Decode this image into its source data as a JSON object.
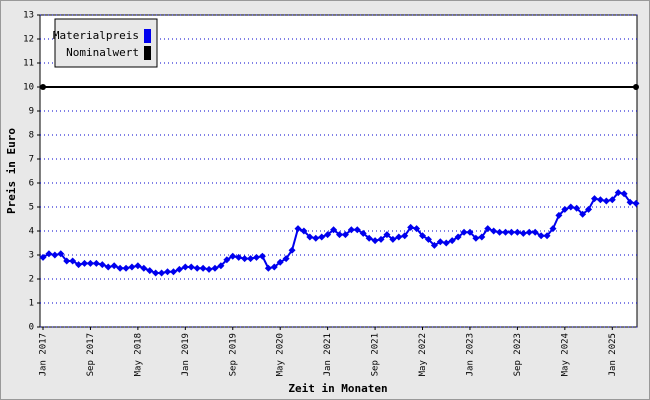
{
  "chart_data": {
    "type": "line",
    "x_label": "Zeit in Monaten",
    "y_label": "Preis in Euro",
    "categories": [
      "Jan 2017",
      null,
      null,
      null,
      null,
      null,
      null,
      null,
      "Sep 2017",
      null,
      null,
      null,
      null,
      null,
      null,
      null,
      "May 2018",
      null,
      null,
      null,
      null,
      null,
      null,
      null,
      "Jan 2019",
      null,
      null,
      null,
      null,
      null,
      null,
      null,
      "Sep 2019",
      null,
      null,
      null,
      null,
      null,
      null,
      null,
      "May 2020",
      null,
      null,
      null,
      null,
      null,
      null,
      null,
      "Jan 2021",
      null,
      null,
      null,
      null,
      null,
      null,
      null,
      "Sep 2021",
      null,
      null,
      null,
      null,
      null,
      null,
      null,
      "May 2022",
      null,
      null,
      null,
      null,
      null,
      null,
      null,
      "Jan 2023",
      null,
      null,
      null,
      null,
      null,
      null,
      null,
      "Sep 2023",
      null,
      null,
      null,
      null,
      null,
      null,
      null,
      "May 2024",
      null,
      null,
      null,
      null,
      null,
      null,
      null,
      "Jan 2025",
      null,
      null,
      null,
      null
    ],
    "series": [
      {
        "name": "Materialpreis",
        "color": "#0000ee",
        "values": [
          2.9,
          3.05,
          3.0,
          3.05,
          2.75,
          2.75,
          2.6,
          2.65,
          2.65,
          2.65,
          2.6,
          2.5,
          2.55,
          2.45,
          2.45,
          2.5,
          2.55,
          2.45,
          2.35,
          2.25,
          2.25,
          2.3,
          2.3,
          2.4,
          2.5,
          2.5,
          2.45,
          2.45,
          2.4,
          2.45,
          2.55,
          2.8,
          2.95,
          2.9,
          2.85,
          2.85,
          2.9,
          2.95,
          2.45,
          2.5,
          2.7,
          2.85,
          3.2,
          4.1,
          4.0,
          3.75,
          3.7,
          3.75,
          3.85,
          4.05,
          3.85,
          3.85,
          4.05,
          4.05,
          3.9,
          3.7,
          3.6,
          3.65,
          3.85,
          3.65,
          3.75,
          3.8,
          4.15,
          4.1,
          3.8,
          3.65,
          3.4,
          3.55,
          3.5,
          3.6,
          3.75,
          3.95,
          3.95,
          3.7,
          3.75,
          4.1,
          4.0,
          3.95,
          3.95,
          3.95,
          3.95,
          3.9,
          3.95,
          3.95,
          3.8,
          3.8,
          4.1,
          4.65,
          4.9,
          5.0,
          4.95,
          4.7,
          4.9,
          5.35,
          5.3,
          5.25,
          5.3,
          5.6,
          5.55,
          5.2,
          5.15
        ]
      }
    ],
    "reference": {
      "name": "Nominalwert",
      "color": "#000000",
      "value": 10
    },
    "ylim": [
      0,
      13
    ],
    "yticks": [
      0,
      1,
      2,
      3,
      4,
      5,
      6,
      7,
      8,
      9,
      10,
      11,
      12,
      13
    ],
    "grid": true
  }
}
